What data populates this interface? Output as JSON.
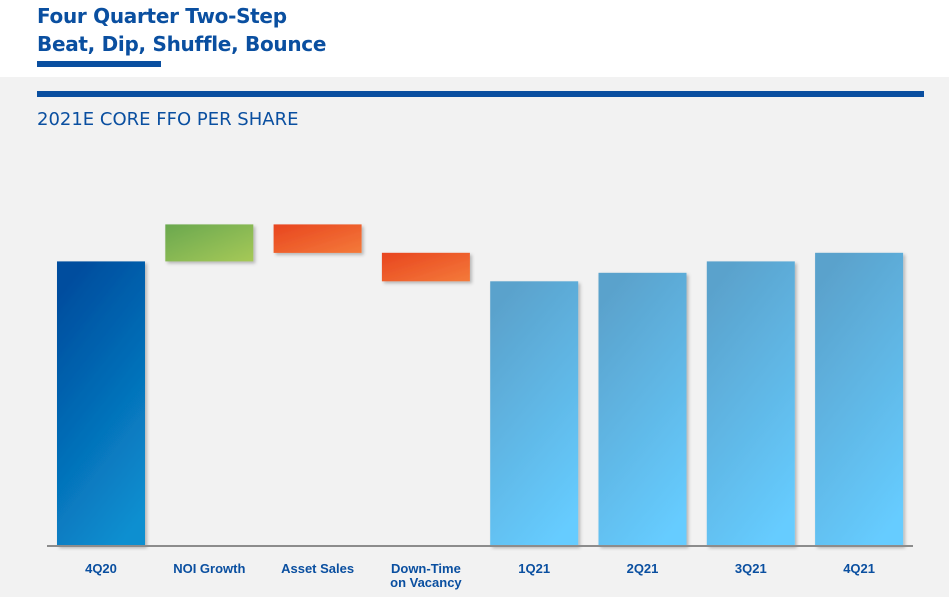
{
  "header": {
    "title_line1": "Four Quarter Two-Step",
    "title_line2": "Beat, Dip, Shuffle, Bounce",
    "subtitle": "2021E CORE FFO PER SHARE"
  },
  "colors": {
    "brand_blue": "#0a4fa0",
    "base_bar_top": "#004d9e",
    "base_bar_bottom": "#0a8fd0",
    "projected_bar_top": "#5aa2cc",
    "projected_bar_bottom": "#66ccff",
    "increase_top": "#6aa84f",
    "increase_bottom": "#a6c957",
    "decrease_top": "#e8451f",
    "decrease_bottom": "#f47a3a"
  },
  "chart_data": {
    "type": "waterfall",
    "title": "2021E CORE FFO PER SHARE",
    "xlabel": "",
    "ylabel": "",
    "y_axis_labels_shown": false,
    "categories": [
      "4Q20",
      "NOI Growth",
      "Asset Sales",
      "Down-Time on Vacancy",
      "1Q21",
      "2Q21",
      "3Q21",
      "4Q21"
    ],
    "category_label_lines": [
      [
        "4Q20"
      ],
      [
        "NOI Growth"
      ],
      [
        "Asset Sales"
      ],
      [
        "Down-Time",
        "on Vacancy"
      ],
      [
        "1Q21"
      ],
      [
        "2Q21"
      ],
      [
        "3Q21"
      ],
      [
        "4Q21"
      ]
    ],
    "bars": [
      {
        "category": "4Q20",
        "kind": "total",
        "value": 100
      },
      {
        "category": "NOI Growth",
        "kind": "increase",
        "start": 100,
        "end": 113
      },
      {
        "category": "Asset Sales",
        "kind": "decrease",
        "start": 113,
        "end": 103
      },
      {
        "category": "Down-Time on Vacancy",
        "kind": "decrease",
        "start": 103,
        "end": 93
      },
      {
        "category": "1Q21",
        "kind": "projected",
        "value": 93
      },
      {
        "category": "2Q21",
        "kind": "projected",
        "value": 96
      },
      {
        "category": "3Q21",
        "kind": "projected",
        "value": 100
      },
      {
        "category": "4Q21",
        "kind": "projected",
        "value": 103
      }
    ],
    "ylim": [
      0,
      130
    ],
    "grid": false,
    "legend": "none"
  }
}
